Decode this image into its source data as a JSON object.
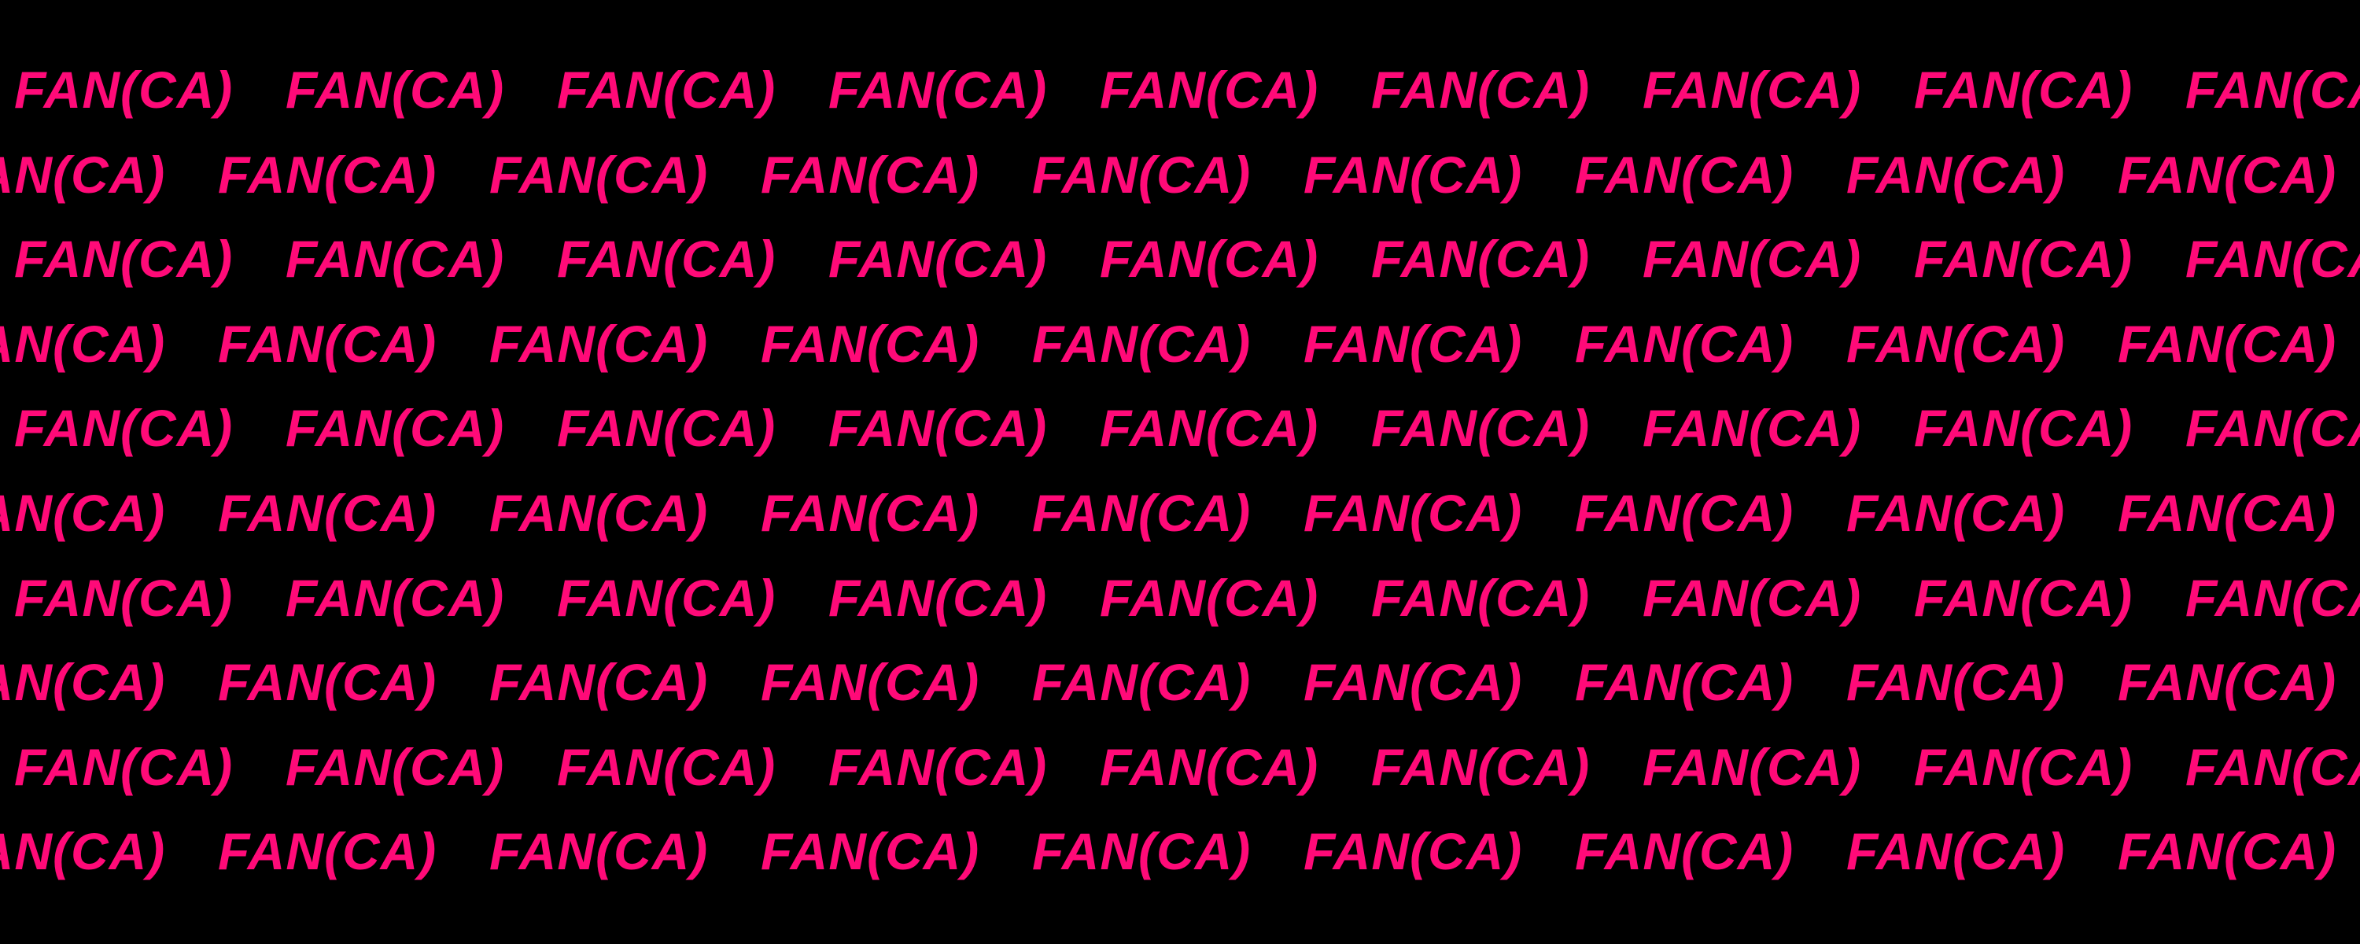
{
  "pattern": {
    "word": "FAN(CA)",
    "text_color": "#ff0a78",
    "background_color": "#000000",
    "row_count": 10
  }
}
